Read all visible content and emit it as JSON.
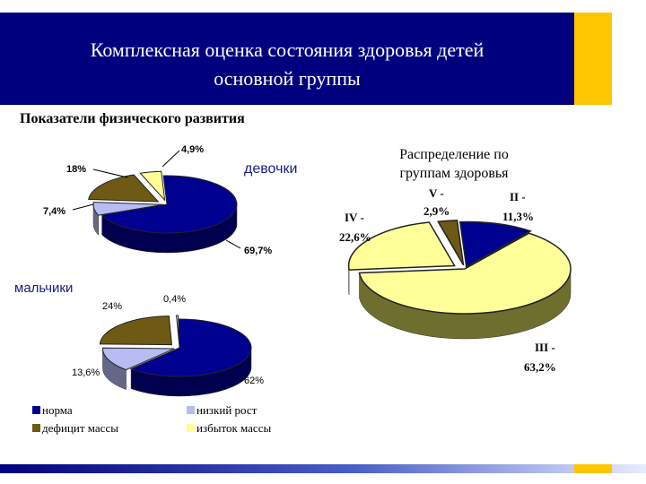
{
  "header": {
    "title_line1": "Комплексная оценка состояния здоровья детей",
    "title_line2": "основной группы"
  },
  "subtitle": "Показатели физического развития",
  "chart_data": [
    {
      "type": "pie",
      "title": "девочки",
      "labels": [
        "норма",
        "низкий рост",
        "дефицит массы",
        "избыток массы"
      ],
      "values": [
        69.7,
        7.4,
        18,
        4.9
      ],
      "value_labels": [
        "69,7%",
        "7,4%",
        "18%",
        "4,9%"
      ],
      "colors": [
        "#000090",
        "#b8bcf4",
        "#6e5a14",
        "#ffff99"
      ]
    },
    {
      "type": "pie",
      "title": "мальчики",
      "labels": [
        "норма",
        "низкий рост",
        "дефицит массы",
        "избыток массы"
      ],
      "values": [
        62,
        13.6,
        24,
        0.4
      ],
      "value_labels": [
        "62%",
        "13,6%",
        "24%",
        "0,4%"
      ],
      "colors": [
        "#000090",
        "#b8bcf4",
        "#6e5a14",
        "#ffff99"
      ]
    },
    {
      "type": "pie",
      "title_line1": "Распределение по",
      "title_line2": "группам здоровья",
      "labels": [
        "II",
        "III",
        "IV",
        "V"
      ],
      "values": [
        11.3,
        63.2,
        22.6,
        2.9
      ],
      "value_labels": [
        {
          "top": "II -",
          "bottom": "11,3%"
        },
        {
          "top": "III -",
          "bottom": "63,2%"
        },
        {
          "top": "IV -",
          "bottom": "22,6%"
        },
        {
          "top": "V -",
          "bottom": "2,9%"
        }
      ],
      "colors": [
        "#000090",
        "#ffff99",
        "#ffff99",
        "#6e5a14"
      ],
      "edge_colors": [
        "#0000ff",
        "#6e6e2e",
        "#6e6e2e",
        "#3a2e08"
      ]
    }
  ],
  "legend": [
    {
      "label": "норма",
      "color": "#000090"
    },
    {
      "label": "низкий рост",
      "color": "#b8bcf4"
    },
    {
      "label": "дефицит массы",
      "color": "#6e5a14"
    },
    {
      "label": "избыток массы",
      "color": "#ffff99"
    }
  ]
}
